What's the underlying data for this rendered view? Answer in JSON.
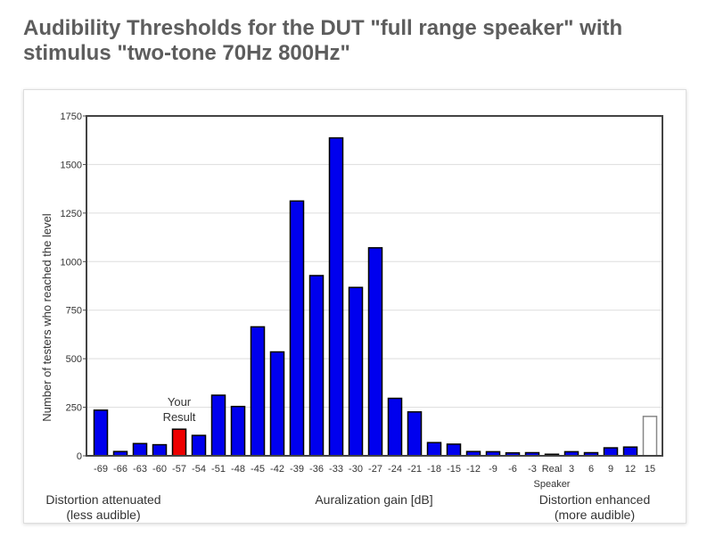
{
  "page": {
    "title": "Audibility Thresholds for the DUT \"full range speaker\" with stimulus \"two-tone 70Hz 800Hz\""
  },
  "labels": {
    "attenuated_line1": "Distortion attenuated",
    "attenuated_line2": "(less audible)",
    "gain": "Auralization gain [dB]",
    "enhanced_line1": "Distortion enhanced",
    "enhanced_line2": "(more audible)",
    "your_result_line1": "Your",
    "your_result_line2": "Result"
  },
  "colors": {
    "bar_fill": "#0000ee",
    "your_result_fill": "#ee0000",
    "real_speaker_fill": "#ffffff",
    "real_speaker_stroke": "#888888",
    "axis": "#444444",
    "grid": "#dddddd",
    "title": "#5d5d5d"
  },
  "chart_data": {
    "type": "bar",
    "title": "",
    "xlabel": "Auralization gain [dB]",
    "ylabel": "Number of testers who reached the level",
    "ylim": [
      0,
      1750
    ],
    "yticks": [
      0,
      250,
      500,
      750,
      1000,
      1250,
      1500,
      1750
    ],
    "grid": true,
    "categories": [
      "-69",
      "-66",
      "-63",
      "-60",
      "-57",
      "-54",
      "-51",
      "-48",
      "-45",
      "-42",
      "-39",
      "-36",
      "-33",
      "-30",
      "-27",
      "-24",
      "-21",
      "-18",
      "-15",
      "-12",
      "-9",
      "-6",
      "-3",
      "Real Speaker",
      "3",
      "6",
      "9",
      "12",
      "15"
    ],
    "values": [
      235,
      22,
      63,
      57,
      137,
      105,
      312,
      254,
      664,
      535,
      1312,
      928,
      1637,
      867,
      1071,
      296,
      226,
      68,
      60,
      22,
      21,
      15,
      16,
      8,
      21,
      16,
      41,
      45,
      203
    ],
    "highlight_index": 4,
    "highlight_label": "Your Result",
    "outlined_index": 28
  }
}
